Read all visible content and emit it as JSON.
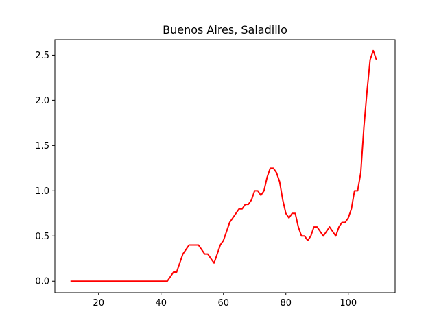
{
  "chart_data": {
    "type": "line",
    "title": "Buenos Aires, Saladillo",
    "xlabel": "",
    "ylabel": "",
    "xlim": [
      6,
      115
    ],
    "ylim": [
      -0.127,
      2.67
    ],
    "xticks": [
      20,
      40,
      60,
      80,
      100
    ],
    "yticks": [
      0.0,
      0.5,
      1.0,
      1.5,
      2.0,
      2.5
    ],
    "xtick_labels": [
      "20",
      "40",
      "60",
      "80",
      "100"
    ],
    "ytick_labels": [
      "0.0",
      "0.5",
      "1.0",
      "1.5",
      "2.0",
      "2.5"
    ],
    "grid": false,
    "legend": "none",
    "series": [
      {
        "color": "#ff0000",
        "x": [
          11,
          12,
          13,
          14,
          15,
          16,
          17,
          18,
          19,
          20,
          21,
          22,
          23,
          24,
          25,
          26,
          27,
          28,
          29,
          30,
          31,
          32,
          33,
          34,
          35,
          36,
          37,
          38,
          39,
          40,
          41,
          42,
          43,
          44,
          45,
          46,
          47,
          48,
          49,
          50,
          51,
          52,
          53,
          54,
          55,
          56,
          57,
          58,
          59,
          60,
          61,
          62,
          63,
          64,
          65,
          66,
          67,
          68,
          69,
          70,
          71,
          72,
          73,
          74,
          75,
          76,
          77,
          78,
          79,
          80,
          81,
          82,
          83,
          84,
          85,
          86,
          87,
          88,
          89,
          90,
          91,
          92,
          93,
          94,
          95,
          96,
          97,
          98,
          99,
          100,
          101,
          102,
          103,
          104,
          105,
          106,
          107,
          108,
          109
        ],
        "y": [
          0,
          0,
          0,
          0,
          0,
          0,
          0,
          0,
          0,
          0,
          0,
          0,
          0,
          0,
          0,
          0,
          0,
          0,
          0,
          0,
          0,
          0,
          0,
          0,
          0,
          0,
          0,
          0,
          0,
          0,
          0,
          0,
          0.05,
          0.1,
          0.1,
          0.2,
          0.3,
          0.35,
          0.4,
          0.4,
          0.4,
          0.4,
          0.35,
          0.3,
          0.3,
          0.25,
          0.2,
          0.3,
          0.4,
          0.45,
          0.55,
          0.65,
          0.7,
          0.75,
          0.8,
          0.8,
          0.85,
          0.85,
          0.9,
          1.0,
          1.0,
          0.95,
          1.0,
          1.15,
          1.25,
          1.25,
          1.2,
          1.1,
          0.9,
          0.75,
          0.7,
          0.75,
          0.75,
          0.6,
          0.5,
          0.5,
          0.45,
          0.5,
          0.6,
          0.6,
          0.55,
          0.5,
          0.55,
          0.6,
          0.55,
          0.5,
          0.6,
          0.65,
          0.65,
          0.7,
          0.8,
          1.0,
          1.0,
          1.2,
          1.7,
          2.1,
          2.45,
          2.55,
          2.45
        ]
      }
    ]
  }
}
